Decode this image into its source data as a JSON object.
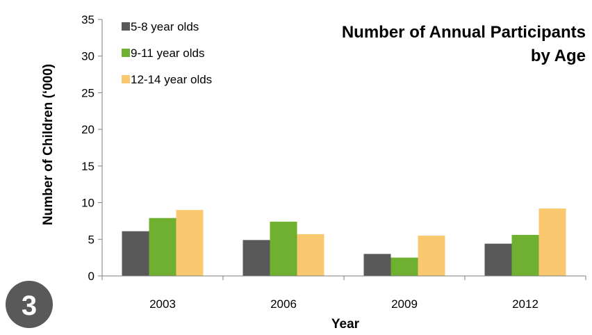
{
  "chart_data": {
    "type": "bar",
    "title_lines": [
      "Number of Annual Participants",
      "by Age"
    ],
    "xlabel": "Year",
    "ylabel": "Number of Children (‘000)",
    "ylim": [
      0,
      35
    ],
    "yticks": [
      "0",
      "5",
      "10",
      "15",
      "20",
      "25",
      "30",
      "35"
    ],
    "categories": [
      "2003",
      "2006",
      "2009",
      "2012"
    ],
    "series": [
      {
        "name": "5-8 year olds",
        "color": "#595959",
        "values": [
          6.1,
          4.9,
          3.0,
          4.4
        ]
      },
      {
        "name": "9-11 year olds",
        "color": "#70b030",
        "values": [
          7.9,
          7.4,
          2.5,
          5.6
        ]
      },
      {
        "name": "12-14 year olds",
        "color": "#fac86e",
        "values": [
          9.0,
          5.7,
          5.5,
          9.2
        ]
      }
    ],
    "grid": false,
    "legend_position": "top-left"
  },
  "badge": {
    "label": "3",
    "color": "#595959"
  }
}
